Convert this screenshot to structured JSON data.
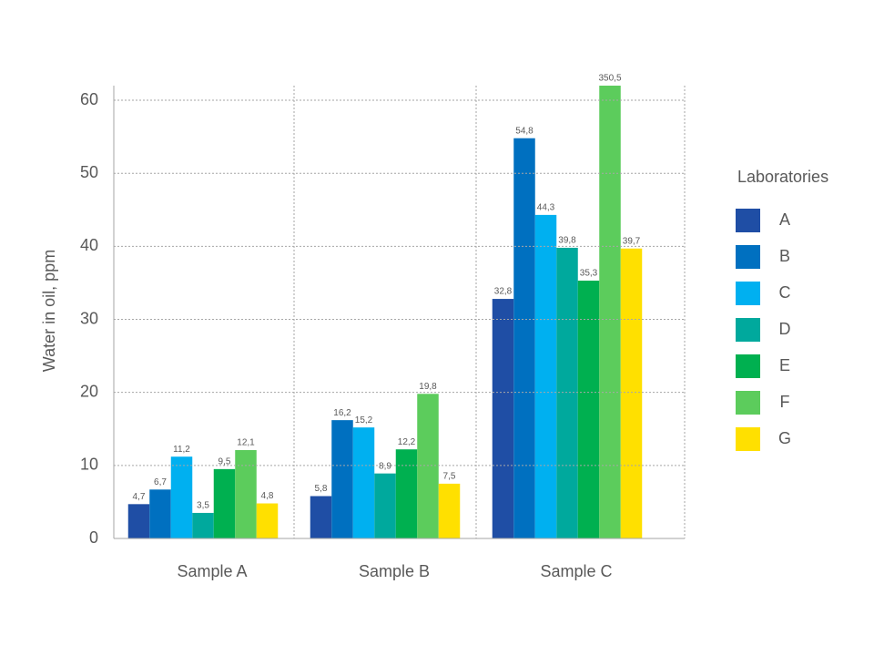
{
  "chart_data": {
    "type": "bar",
    "y_label": "Water in oil, ppm",
    "categories": [
      "Sample A",
      "Sample B",
      "Sample C"
    ],
    "legend_title": "Laboratories",
    "series": [
      {
        "name": "A",
        "color": "#1f4ea5",
        "values": [
          4.7,
          5.8,
          32.8
        ],
        "value_labels": [
          "4,7",
          "5,8",
          "32,8"
        ]
      },
      {
        "name": "B",
        "color": "#0070c0",
        "values": [
          6.7,
          16.2,
          54.8
        ],
        "value_labels": [
          "6,7",
          "16,2",
          "54,8"
        ]
      },
      {
        "name": "C",
        "color": "#00b0f0",
        "values": [
          11.2,
          15.2,
          44.3
        ],
        "value_labels": [
          "11,2",
          "15,2",
          "44,3"
        ]
      },
      {
        "name": "D",
        "color": "#00a99d",
        "values": [
          3.5,
          8.9,
          39.8
        ],
        "value_labels": [
          "3,5",
          "8,9",
          "39,8"
        ]
      },
      {
        "name": "E",
        "color": "#00b050",
        "values": [
          9.5,
          12.2,
          35.3
        ],
        "value_labels": [
          "9,5",
          "12,2",
          "35,3"
        ]
      },
      {
        "name": "F",
        "color": "#5ccc5c",
        "values": [
          12.1,
          19.8,
          350.5
        ],
        "value_labels": [
          "12,1",
          "19,8",
          "350,5"
        ]
      },
      {
        "name": "G",
        "color": "#ffe000",
        "values": [
          4.8,
          7.5,
          39.7
        ],
        "value_labels": [
          "4,8",
          "7,5",
          "39,7"
        ]
      }
    ],
    "ylim": [
      0,
      62
    ],
    "yticks": [
      0,
      10,
      20,
      30,
      40,
      50,
      60
    ],
    "grid": true,
    "legend": "right"
  }
}
